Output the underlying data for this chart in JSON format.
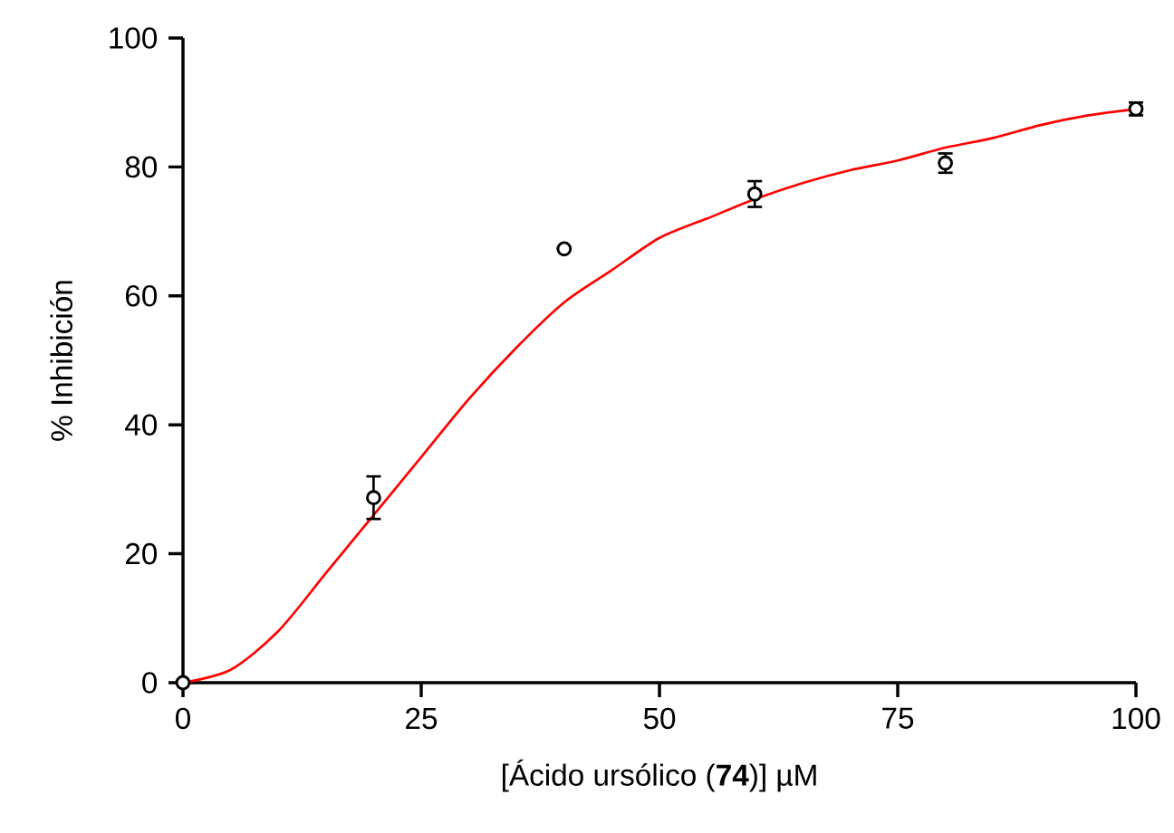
{
  "chart_data": {
    "type": "scatter",
    "xlabel": "[Ácido ursólico (**74**)] µM",
    "ylabel": "% Inhibición",
    "xlim": [
      0,
      100
    ],
    "ylim": [
      0,
      100
    ],
    "xticks": [
      0,
      25,
      50,
      75,
      100
    ],
    "yticks": [
      0,
      20,
      40,
      60,
      80,
      100
    ],
    "series": [
      {
        "type": "line",
        "color": "#ff0000",
        "marker": "none",
        "line_style": "solid",
        "x": [
          0,
          5,
          10,
          15,
          20,
          25,
          30,
          35,
          40,
          45,
          50,
          55,
          60,
          65,
          70,
          75,
          80,
          85,
          90,
          95,
          100
        ],
        "values": [
          0,
          2,
          8,
          17,
          26,
          35,
          44,
          52,
          59,
          64,
          69,
          72,
          75,
          77.5,
          79.5,
          81,
          83,
          84.5,
          86.5,
          88,
          89
        ]
      },
      {
        "color": "#000000",
        "marker": "circle",
        "x": [
          0,
          20,
          40,
          60,
          80,
          100
        ],
        "values": [
          0,
          28.7,
          67.3,
          75.8,
          80.6,
          89
        ],
        "errors": [
          null,
          3.3,
          null,
          2,
          1.5,
          1
        ]
      }
    ]
  }
}
